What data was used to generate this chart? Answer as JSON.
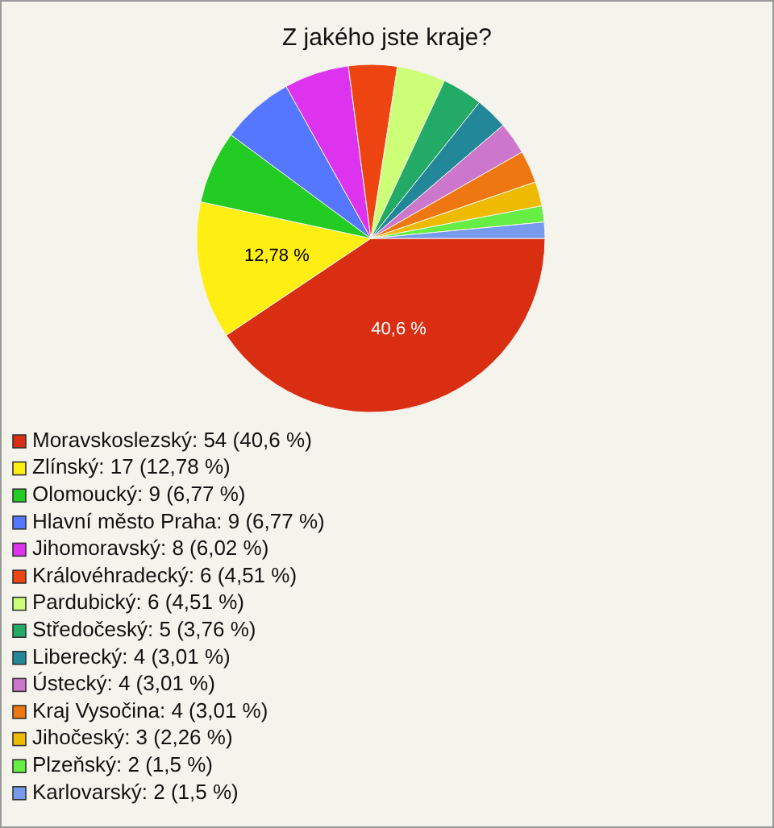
{
  "chart_data": {
    "type": "pie",
    "title": "Z jakého jste kraje?",
    "categories": [
      "Moravskoslezský: 54 (40,6 %)",
      "Zlínský: 17 (12,78 %)",
      "Olomoucký: 9 (6,77 %)",
      "Hlavní město Praha: 9 (6,77 %)",
      "Jihomoravský: 8 (6,02 %)",
      "Královéhradecký: 6 (4,51 %)",
      "Pardubický: 6 (4,51 %)",
      "Středočeský: 5 (3,76 %)",
      "Liberecký: 4 (3,01 %)",
      "Ústecký: 4 (3,01 %)",
      "Kraj Vysočina: 4 (3,01 %)",
      "Jihočeský: 3 (2,26 %)",
      "Plzeňský: 2 (1,5 %)",
      "Karlovarský: 2 (1,5 %)"
    ],
    "values": [
      40.6,
      12.78,
      6.77,
      6.77,
      6.02,
      4.51,
      4.51,
      3.76,
      3.01,
      3.01,
      3.01,
      2.26,
      1.5,
      1.5
    ],
    "value_labels": [
      "40,6 %",
      "12,78 %",
      null,
      null,
      null,
      null,
      null,
      null,
      null,
      null,
      null,
      null,
      null,
      null
    ],
    "colors": [
      "#d92e12",
      "#ffee11",
      "#22cc22",
      "#5577ff",
      "#dd33ee",
      "#ee4411",
      "#ccff77",
      "#22aa66",
      "#228899",
      "#cc77cc",
      "#ee7711",
      "#eebb00",
      "#66ee44",
      "#7799ee"
    ],
    "legend": "bottom left"
  }
}
